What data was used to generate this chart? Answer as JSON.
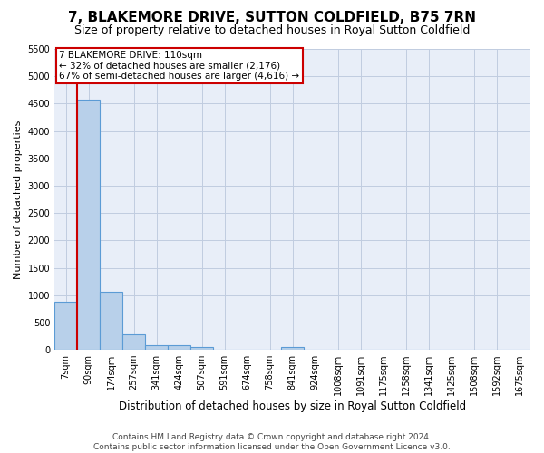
{
  "title": "7, BLAKEMORE DRIVE, SUTTON COLDFIELD, B75 7RN",
  "subtitle": "Size of property relative to detached houses in Royal Sutton Coldfield",
  "xlabel": "Distribution of detached houses by size in Royal Sutton Coldfield",
  "ylabel": "Number of detached properties",
  "footer_line1": "Contains HM Land Registry data © Crown copyright and database right 2024.",
  "footer_line2": "Contains public sector information licensed under the Open Government Licence v3.0.",
  "annotation_title": "7 BLAKEMORE DRIVE: 110sqm",
  "annotation_line1": "← 32% of detached houses are smaller (2,176)",
  "annotation_line2": "67% of semi-detached houses are larger (4,616) →",
  "bar_labels": [
    "7sqm",
    "90sqm",
    "174sqm",
    "257sqm",
    "341sqm",
    "424sqm",
    "507sqm",
    "591sqm",
    "674sqm",
    "758sqm",
    "841sqm",
    "924sqm",
    "1008sqm",
    "1091sqm",
    "1175sqm",
    "1258sqm",
    "1341sqm",
    "1425sqm",
    "1508sqm",
    "1592sqm",
    "1675sqm"
  ],
  "bar_values": [
    880,
    4570,
    1060,
    290,
    80,
    80,
    50,
    0,
    0,
    0,
    50,
    0,
    0,
    0,
    0,
    0,
    0,
    0,
    0,
    0,
    0
  ],
  "bar_color": "#b8d0ea",
  "bar_edge_color": "#5b9bd5",
  "vline_x_idx": 1,
  "vline_color": "#cc0000",
  "annotation_box_color": "#cc0000",
  "bg_color": "#e8eef8",
  "grid_color": "#c0cce0",
  "ylim_max": 5500,
  "yticks": [
    0,
    500,
    1000,
    1500,
    2000,
    2500,
    3000,
    3500,
    4000,
    4500,
    5000,
    5500
  ],
  "title_fontsize": 11,
  "subtitle_fontsize": 9,
  "ylabel_fontsize": 8,
  "xlabel_fontsize": 8.5,
  "tick_fontsize": 7,
  "footer_fontsize": 6.5,
  "annot_fontsize": 7.5
}
